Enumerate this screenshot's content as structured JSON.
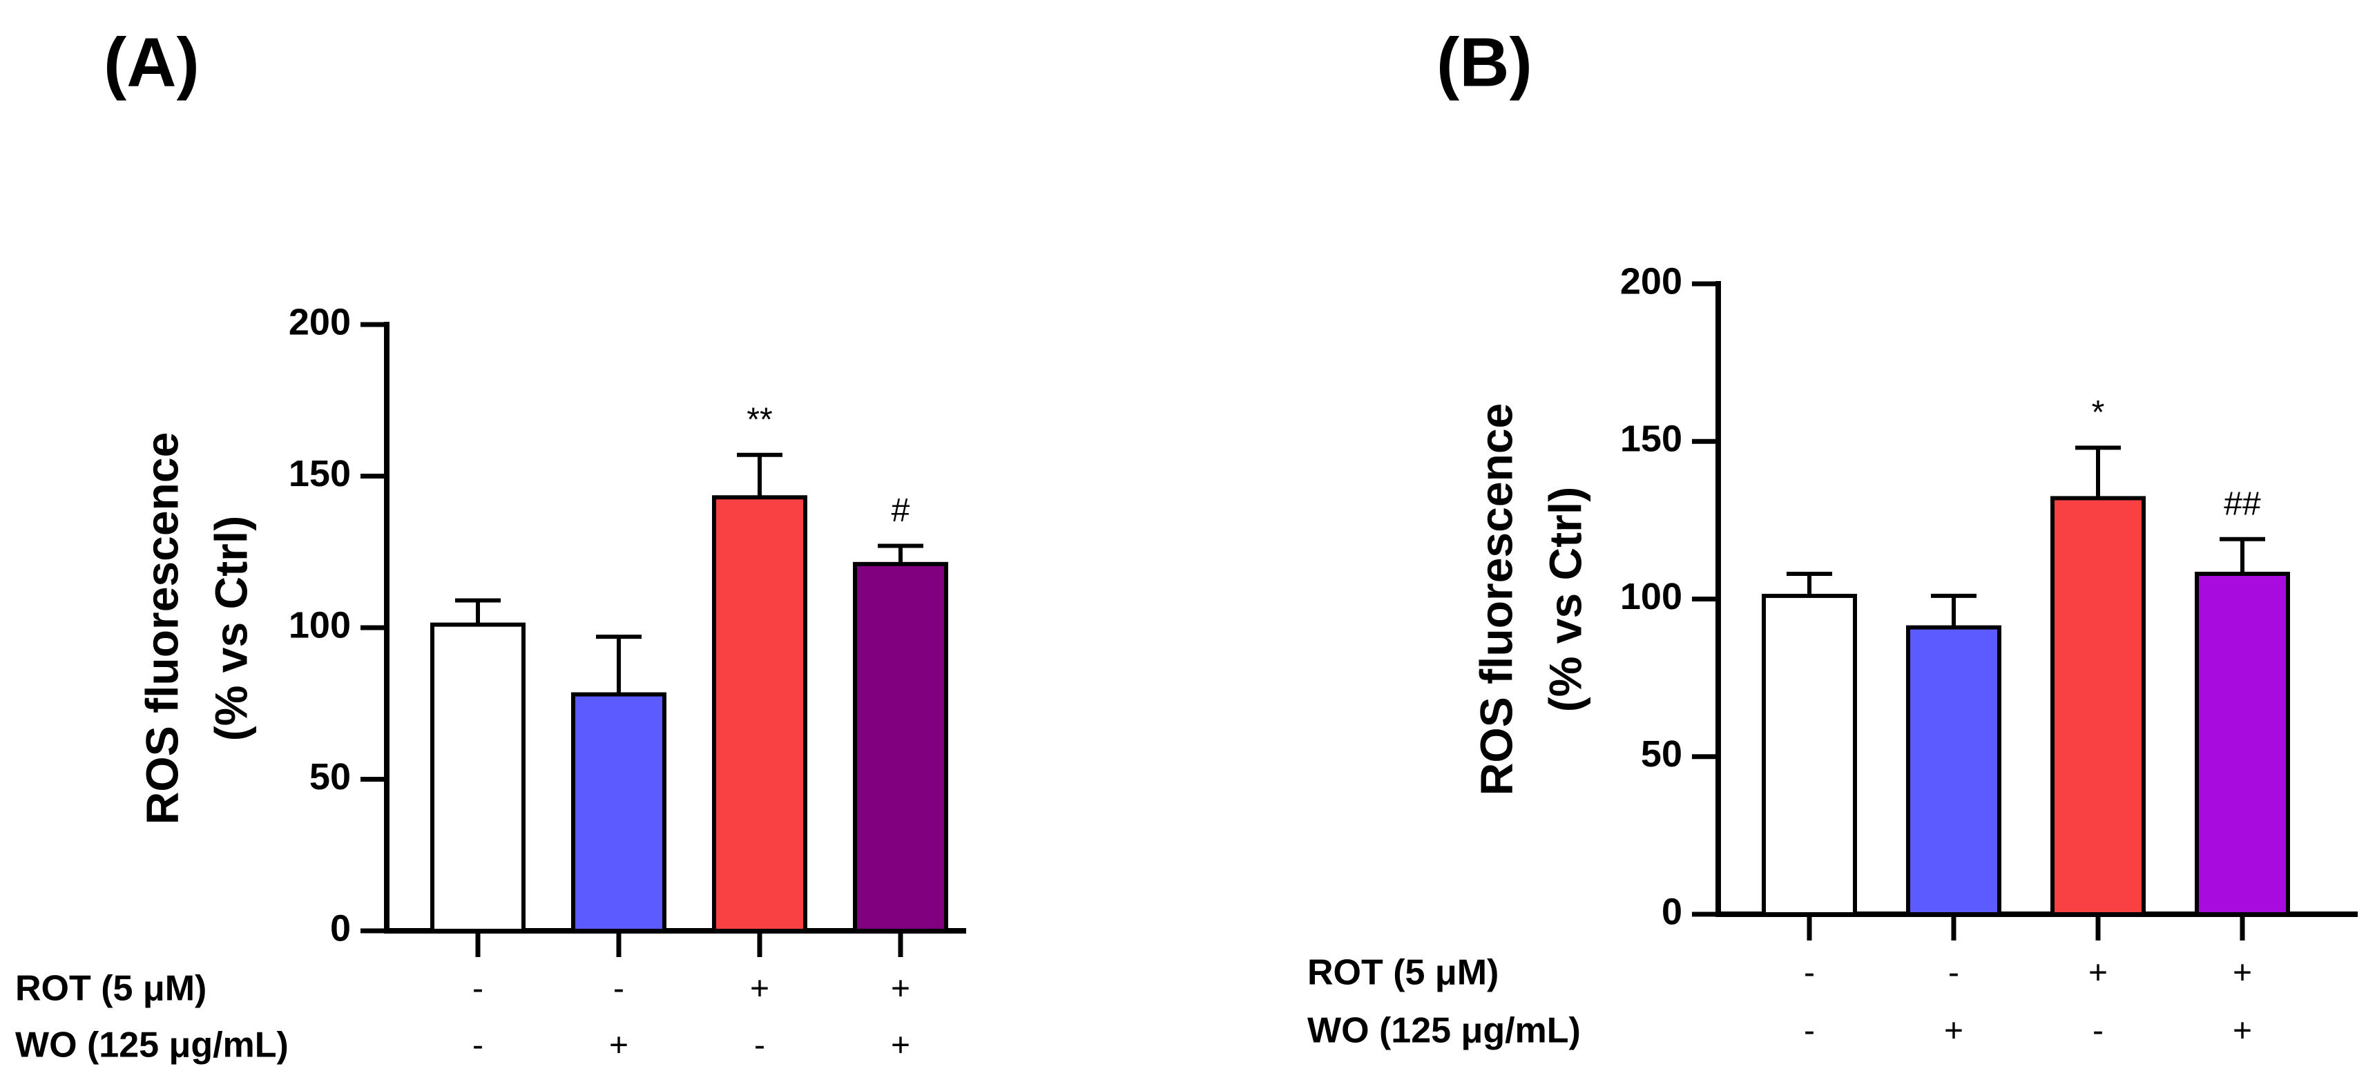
{
  "chart_data": [
    {
      "panel_label": "(A)",
      "type": "bar",
      "ylabel_line1": "ROS fluorescence",
      "ylabel_line2": "(% vs Ctrl)",
      "ylim": [
        0,
        200
      ],
      "yticks": [
        0,
        50,
        100,
        150,
        200
      ],
      "bars": [
        {
          "value": 101,
          "error": 8,
          "color": "#ffffff",
          "sig": ""
        },
        {
          "value": 78,
          "error": 19,
          "color": "#5b5bff",
          "sig": ""
        },
        {
          "value": 143,
          "error": 14,
          "color": "#f94144",
          "sig": "**"
        },
        {
          "value": 121,
          "error": 6,
          "color": "#800080",
          "sig": "#"
        }
      ],
      "conditions": [
        {
          "label": "ROT (5 μM)",
          "signs": [
            "-",
            "-",
            "+",
            "+"
          ]
        },
        {
          "label": "WO  (125 μg/mL)",
          "signs": [
            "-",
            "+",
            "-",
            "+"
          ]
        }
      ]
    },
    {
      "panel_label": "(B)",
      "type": "bar",
      "ylabel_line1": "ROS fluorescence",
      "ylabel_line2": "(% vs Ctrl)",
      "ylim": [
        0,
        200
      ],
      "yticks": [
        0,
        50,
        100,
        150,
        200
      ],
      "bars": [
        {
          "value": 101,
          "error": 7,
          "color": "#ffffff",
          "sig": ""
        },
        {
          "value": 91,
          "error": 10,
          "color": "#5b5bff",
          "sig": ""
        },
        {
          "value": 132,
          "error": 16,
          "color": "#f94144",
          "sig": "*"
        },
        {
          "value": 108,
          "error": 11,
          "color": "#a80bde",
          "sig": "##"
        }
      ],
      "conditions": [
        {
          "label": "ROT (5 μM)",
          "signs": [
            "-",
            "-",
            "+",
            "+"
          ]
        },
        {
          "label": "WO  (125 μg/mL)",
          "signs": [
            "-",
            "+",
            "-",
            "+"
          ]
        }
      ]
    }
  ]
}
